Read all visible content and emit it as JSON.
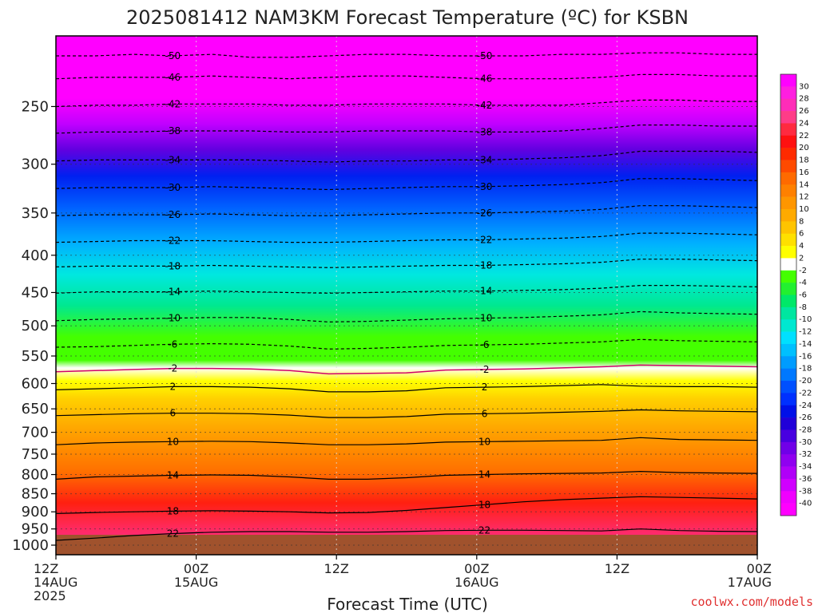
{
  "chart_data": {
    "type": "heatmap",
    "title": "2025081412 NAM3KM Forecast Temperature (ºC) for KSBN",
    "xlabel": "Forecast Time (UTC)",
    "ylabel": "",
    "y_scale": "log",
    "y_inverted": true,
    "ylim": [
      1000,
      200
    ],
    "y_ticks": [
      250,
      300,
      350,
      400,
      450,
      500,
      550,
      600,
      650,
      700,
      750,
      800,
      850,
      900,
      950,
      1000
    ],
    "x_ticks": [
      {
        "hour": 0,
        "lines": [
          "12Z",
          "14AUG",
          "2025"
        ]
      },
      {
        "hour": 12,
        "lines": [
          "00Z",
          "15AUG"
        ]
      },
      {
        "hour": 24,
        "lines": [
          "12Z"
        ]
      },
      {
        "hour": 36,
        "lines": [
          "00Z",
          "16AUG"
        ]
      },
      {
        "hour": 48,
        "lines": [
          "12Z"
        ]
      },
      {
        "hour": 60,
        "lines": [
          "00Z",
          "17AUG"
        ]
      }
    ],
    "xlim": [
      0,
      60
    ],
    "grid": true,
    "colorbar": {
      "labels": [
        "30",
        "28",
        "26",
        "24",
        "22",
        "20",
        "18",
        "16",
        "14",
        "12",
        "10",
        "8",
        "6",
        "4",
        "2",
        "-2",
        "-4",
        "-6",
        "-8",
        "-10",
        "-12",
        "-14",
        "-16",
        "-18",
        "-20",
        "-22",
        "-24",
        "-26",
        "-28",
        "-30",
        "-32",
        "-34",
        "-36",
        "-38",
        "-40"
      ],
      "colors": [
        "#ff00ff",
        "#ff1ee0",
        "#ff2cb8",
        "#ff3c88",
        "#ff2a40",
        "#ff1010",
        "#ff2a00",
        "#ff4a00",
        "#ff6a00",
        "#ff8000",
        "#ff9600",
        "#ffaa00",
        "#ffc400",
        "#ffe000",
        "#ffff00",
        "#ffffff",
        "#44ff00",
        "#22f030",
        "#00e868",
        "#00e6a0",
        "#00e8d0",
        "#00e0ff",
        "#00c0ff",
        "#009cff",
        "#0078ff",
        "#0050ff",
        "#0030ff",
        "#0010e8",
        "#2000d8",
        "#4800e0",
        "#7000e8",
        "#9000f0",
        "#b000f8",
        "#d000ff",
        "#f000ff",
        "#ff00ff"
      ]
    },
    "isotherms": [
      {
        "label": "-50",
        "p": [
          213,
          213,
          212,
          213,
          212,
          214,
          214,
          213,
          212,
          212,
          213,
          213,
          213,
          212,
          212,
          211,
          211,
          212,
          212
        ]
      },
      {
        "label": "-46",
        "p": [
          229,
          228,
          228,
          228,
          227,
          228,
          229,
          228,
          227,
          227,
          228,
          229,
          229,
          229,
          228,
          226,
          226,
          227,
          227
        ]
      },
      {
        "label": "-42",
        "p": [
          250,
          249,
          249,
          248,
          248,
          248,
          249,
          249,
          248,
          248,
          248,
          249,
          249,
          249,
          247,
          245,
          245,
          246,
          246
        ]
      },
      {
        "label": "-38",
        "p": [
          272,
          271,
          271,
          270,
          270,
          270,
          271,
          271,
          270,
          270,
          270,
          271,
          271,
          270,
          268,
          265,
          265,
          266,
          266
        ]
      },
      {
        "label": "-34",
        "p": [
          297,
          296,
          296,
          296,
          296,
          296,
          297,
          298,
          297,
          297,
          296,
          296,
          295,
          294,
          292,
          288,
          288,
          288,
          289
        ]
      },
      {
        "label": "-30",
        "p": [
          324,
          323,
          323,
          323,
          322,
          323,
          324,
          325,
          324,
          323,
          322,
          322,
          321,
          320,
          318,
          314,
          314,
          315,
          316
        ]
      },
      {
        "label": "-26",
        "p": [
          353,
          352,
          352,
          352,
          351,
          352,
          353,
          353,
          352,
          351,
          350,
          350,
          349,
          348,
          346,
          342,
          342,
          343,
          344
        ]
      },
      {
        "label": "-22",
        "p": [
          384,
          383,
          382,
          382,
          382,
          383,
          384,
          384,
          383,
          382,
          381,
          381,
          380,
          379,
          377,
          373,
          373,
          374,
          375
        ]
      },
      {
        "label": "-18",
        "p": [
          415,
          414,
          414,
          414,
          413,
          414,
          415,
          416,
          415,
          414,
          413,
          413,
          412,
          411,
          409,
          405,
          405,
          406,
          407
        ]
      },
      {
        "label": "-14",
        "p": [
          451,
          449,
          449,
          449,
          448,
          449,
          450,
          451,
          450,
          449,
          448,
          448,
          447,
          446,
          444,
          440,
          440,
          441,
          442
        ]
      },
      {
        "label": "-10",
        "p": [
          492,
          490,
          489,
          488,
          487,
          487,
          490,
          494,
          493,
          491,
          489,
          488,
          487,
          485,
          483,
          478,
          480,
          481,
          482
        ]
      },
      {
        "label": "-6",
        "p": [
          535,
          534,
          532,
          530,
          529,
          530,
          533,
          538,
          537,
          535,
          532,
          531,
          530,
          528,
          526,
          522,
          524,
          525,
          526
        ]
      },
      {
        "label": "-2",
        "p": [
          578,
          576,
          574,
          572,
          572,
          573,
          576,
          582,
          581,
          580,
          575,
          574,
          573,
          571,
          569,
          566,
          567,
          568,
          569
        ]
      },
      {
        "label": "2",
        "p": [
          612,
          610,
          608,
          606,
          606,
          607,
          610,
          616,
          616,
          614,
          608,
          607,
          606,
          604,
          602,
          605,
          606,
          606,
          607
        ]
      },
      {
        "label": "6",
        "p": [
          664,
          662,
          660,
          659,
          659,
          660,
          663,
          668,
          668,
          666,
          661,
          660,
          659,
          657,
          655,
          652,
          654,
          655,
          656
        ]
      },
      {
        "label": "10",
        "p": [
          728,
          724,
          722,
          721,
          720,
          721,
          724,
          728,
          728,
          726,
          722,
          721,
          720,
          719,
          718,
          712,
          716,
          717,
          718
        ]
      },
      {
        "label": "14",
        "p": [
          812,
          806,
          804,
          802,
          801,
          802,
          806,
          812,
          812,
          808,
          802,
          800,
          798,
          797,
          796,
          792,
          795,
          796,
          797
        ]
      },
      {
        "label": "18",
        "p": [
          905,
          902,
          900,
          898,
          897,
          898,
          900,
          903,
          902,
          896,
          888,
          880,
          872,
          866,
          862,
          858,
          860,
          862,
          864
        ]
      },
      {
        "label": "22",
        "p": [
          985,
          978,
          970,
          964,
          960,
          958,
          958,
          960,
          960,
          958,
          955,
          954,
          954,
          955,
          956,
          950,
          955,
          957,
          958
        ]
      }
    ]
  },
  "credit": "coolwx.com/models"
}
